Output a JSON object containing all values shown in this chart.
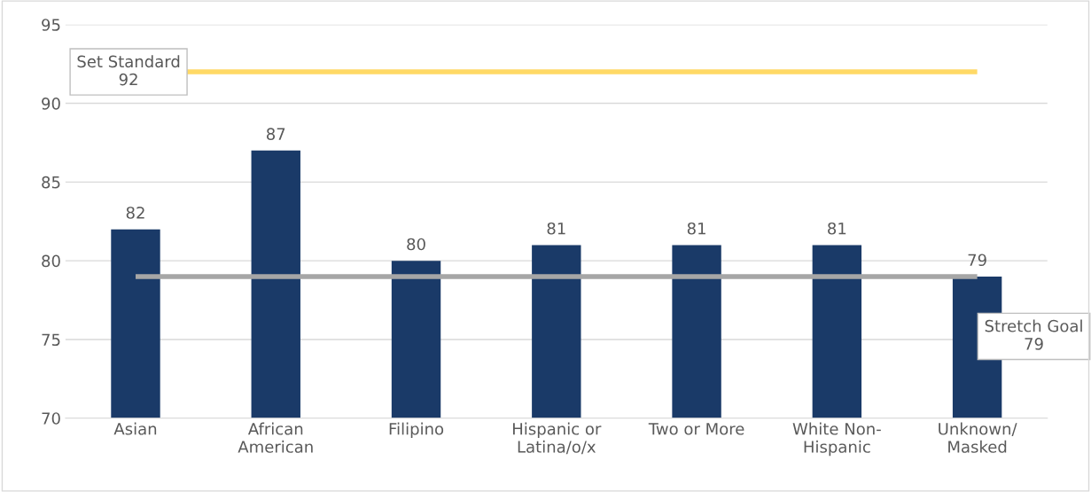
{
  "chart_data": {
    "type": "bar",
    "categories": [
      "Asian",
      "African\nAmerican",
      "Filipino",
      "Hispanic or\nLatina/o/x",
      "Two or More",
      "White Non-\nHispanic",
      "Unknown/\nMasked"
    ],
    "values": [
      82,
      87,
      80,
      81,
      81,
      81,
      79
    ],
    "color": "#1a3a68",
    "data_labels": true,
    "ylim": [
      70,
      95
    ],
    "yticks": [
      70,
      75,
      80,
      85,
      90,
      95
    ],
    "grid": "y",
    "ref_lines": [
      {
        "axis": "y",
        "value": 92,
        "label": "Set Standard\n92",
        "color": "#ffd966"
      },
      {
        "axis": "y",
        "value": 79,
        "label": "Stretch Goal\n79",
        "color": "#a6a6a6"
      }
    ]
  }
}
